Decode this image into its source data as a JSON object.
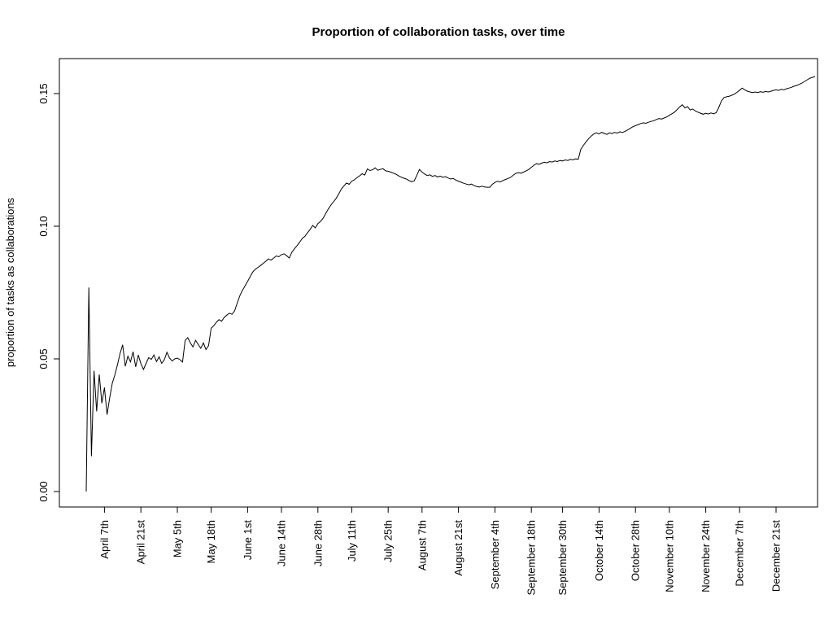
{
  "chart_data": {
    "type": "line",
    "title": "Proportion of collaboration tasks, over time",
    "xlabel": "",
    "ylabel": "proportion of tasks as collaborations",
    "series_name": "proportion of tasks as collaborations",
    "line_color": "#000000",
    "background_color": "#ffffff",
    "grid": false,
    "legend": false,
    "ylim": [
      0.0,
      0.15
    ],
    "y_ticks": [
      "0.00",
      "0.05",
      "0.10",
      "0.15"
    ],
    "y_tick_values": [
      0.0,
      0.05,
      0.1,
      0.15
    ],
    "x_tick_labels": [
      "April 7th",
      "April 21st",
      "May 5th",
      "May 18th",
      "June 1st",
      "June 14th",
      "June 28th",
      "July 11th",
      "July 25th",
      "August 7th",
      "August 21st",
      "September 4th",
      "September 18th",
      "September 30th",
      "October 14th",
      "October 28th",
      "November 10th",
      "November 24th",
      "December 7th",
      "December 21st"
    ],
    "x_tick_days": [
      7,
      21,
      35,
      48,
      62,
      75,
      89,
      102,
      116,
      129,
      143,
      157,
      171,
      183,
      197,
      211,
      224,
      238,
      251,
      265
    ],
    "points_format": "[day_index_from_start, proportion]",
    "points": [
      [
        0,
        0.0
      ],
      [
        1,
        0.0769
      ],
      [
        2,
        0.0133
      ],
      [
        3,
        0.0455
      ],
      [
        4,
        0.0302
      ],
      [
        5,
        0.0441
      ],
      [
        6,
        0.0333
      ],
      [
        7,
        0.0392
      ],
      [
        8,
        0.029
      ],
      [
        9,
        0.0352
      ],
      [
        10,
        0.0408
      ],
      [
        11,
        0.044
      ],
      [
        12,
        0.0478
      ],
      [
        13,
        0.0521
      ],
      [
        14,
        0.0553
      ],
      [
        15,
        0.0472
      ],
      [
        16,
        0.051
      ],
      [
        17,
        0.0489
      ],
      [
        18,
        0.0527
      ],
      [
        19,
        0.047
      ],
      [
        20,
        0.0515
      ],
      [
        21,
        0.0482
      ],
      [
        22,
        0.046
      ],
      [
        23,
        0.0483
      ],
      [
        24,
        0.0505
      ],
      [
        25,
        0.0498
      ],
      [
        26,
        0.0515
      ],
      [
        27,
        0.049
      ],
      [
        28,
        0.0508
      ],
      [
        29,
        0.0483
      ],
      [
        30,
        0.0497
      ],
      [
        31,
        0.0525
      ],
      [
        32,
        0.0503
      ],
      [
        33,
        0.0492
      ],
      [
        34,
        0.05
      ],
      [
        35,
        0.0503
      ],
      [
        36,
        0.0497
      ],
      [
        37,
        0.0488
      ],
      [
        38,
        0.057
      ],
      [
        39,
        0.058
      ],
      [
        40,
        0.056
      ],
      [
        41,
        0.0545
      ],
      [
        42,
        0.057
      ],
      [
        43,
        0.0555
      ],
      [
        44,
        0.054
      ],
      [
        45,
        0.056
      ],
      [
        46,
        0.0535
      ],
      [
        47,
        0.055
      ],
      [
        48,
        0.0616
      ],
      [
        49,
        0.0625
      ],
      [
        50,
        0.0638
      ],
      [
        51,
        0.0648
      ],
      [
        52,
        0.0642
      ],
      [
        53,
        0.0656
      ],
      [
        54,
        0.0665
      ],
      [
        55,
        0.0672
      ],
      [
        56,
        0.0668
      ],
      [
        57,
        0.0681
      ],
      [
        58,
        0.071
      ],
      [
        59,
        0.0738
      ],
      [
        60,
        0.0758
      ],
      [
        61,
        0.0775
      ],
      [
        62,
        0.0792
      ],
      [
        63,
        0.081
      ],
      [
        64,
        0.0828
      ],
      [
        65,
        0.0838
      ],
      [
        66,
        0.0845
      ],
      [
        67,
        0.0852
      ],
      [
        68,
        0.086
      ],
      [
        69,
        0.0868
      ],
      [
        70,
        0.0877
      ],
      [
        71,
        0.0872
      ],
      [
        72,
        0.088
      ],
      [
        73,
        0.0888
      ],
      [
        74,
        0.0885
      ],
      [
        75,
        0.0893
      ],
      [
        76,
        0.0896
      ],
      [
        77,
        0.0889
      ],
      [
        78,
        0.088
      ],
      [
        79,
        0.0902
      ],
      [
        80,
        0.0915
      ],
      [
        81,
        0.0927
      ],
      [
        82,
        0.094
      ],
      [
        83,
        0.0954
      ],
      [
        84,
        0.0962
      ],
      [
        85,
        0.0975
      ],
      [
        86,
        0.0988
      ],
      [
        87,
        0.1003
      ],
      [
        88,
        0.0994
      ],
      [
        89,
        0.101
      ],
      [
        90,
        0.1018
      ],
      [
        91,
        0.103
      ],
      [
        92,
        0.1048
      ],
      [
        93,
        0.1065
      ],
      [
        94,
        0.108
      ],
      [
        95,
        0.1092
      ],
      [
        96,
        0.1105
      ],
      [
        97,
        0.1122
      ],
      [
        98,
        0.114
      ],
      [
        99,
        0.1152
      ],
      [
        100,
        0.1163
      ],
      [
        101,
        0.1158
      ],
      [
        102,
        0.117
      ],
      [
        103,
        0.1175
      ],
      [
        104,
        0.1183
      ],
      [
        105,
        0.119
      ],
      [
        106,
        0.1198
      ],
      [
        107,
        0.1193
      ],
      [
        108,
        0.1216
      ],
      [
        109,
        0.121
      ],
      [
        110,
        0.1213
      ],
      [
        111,
        0.122
      ],
      [
        112,
        0.1211
      ],
      [
        113,
        0.1214
      ],
      [
        114,
        0.1217
      ],
      [
        115,
        0.1209
      ],
      [
        116,
        0.1207
      ],
      [
        117,
        0.1204
      ],
      [
        118,
        0.12
      ],
      [
        119,
        0.1196
      ],
      [
        120,
        0.119
      ],
      [
        121,
        0.1185
      ],
      [
        122,
        0.1181
      ],
      [
        123,
        0.1178
      ],
      [
        124,
        0.1172
      ],
      [
        125,
        0.1168
      ],
      [
        126,
        0.1171
      ],
      [
        127,
        0.1192
      ],
      [
        128,
        0.1214
      ],
      [
        129,
        0.1204
      ],
      [
        130,
        0.1197
      ],
      [
        131,
        0.1191
      ],
      [
        132,
        0.1194
      ],
      [
        133,
        0.1188
      ],
      [
        134,
        0.1191
      ],
      [
        135,
        0.1186
      ],
      [
        136,
        0.1189
      ],
      [
        137,
        0.1184
      ],
      [
        138,
        0.1187
      ],
      [
        139,
        0.1182
      ],
      [
        140,
        0.1178
      ],
      [
        141,
        0.118
      ],
      [
        142,
        0.1174
      ],
      [
        143,
        0.117
      ],
      [
        144,
        0.1166
      ],
      [
        145,
        0.1162
      ],
      [
        146,
        0.1159
      ],
      [
        147,
        0.1156
      ],
      [
        148,
        0.1159
      ],
      [
        149,
        0.1153
      ],
      [
        150,
        0.115
      ],
      [
        151,
        0.1148
      ],
      [
        152,
        0.1151
      ],
      [
        153,
        0.1148
      ],
      [
        154,
        0.1147
      ],
      [
        155,
        0.1147
      ],
      [
        156,
        0.1158
      ],
      [
        157,
        0.1165
      ],
      [
        158,
        0.117
      ],
      [
        159,
        0.1167
      ],
      [
        160,
        0.1172
      ],
      [
        161,
        0.1176
      ],
      [
        162,
        0.118
      ],
      [
        163,
        0.1184
      ],
      [
        164,
        0.1192
      ],
      [
        165,
        0.1199
      ],
      [
        166,
        0.1202
      ],
      [
        167,
        0.12
      ],
      [
        168,
        0.1204
      ],
      [
        169,
        0.1209
      ],
      [
        170,
        0.1214
      ],
      [
        171,
        0.1222
      ],
      [
        172,
        0.123
      ],
      [
        173,
        0.1236
      ],
      [
        174,
        0.1233
      ],
      [
        175,
        0.1238
      ],
      [
        176,
        0.1241
      ],
      [
        177,
        0.1239
      ],
      [
        178,
        0.1244
      ],
      [
        179,
        0.1242
      ],
      [
        180,
        0.1246
      ],
      [
        181,
        0.1244
      ],
      [
        182,
        0.1248
      ],
      [
        183,
        0.1246
      ],
      [
        184,
        0.125
      ],
      [
        185,
        0.1248
      ],
      [
        186,
        0.1252
      ],
      [
        187,
        0.125
      ],
      [
        188,
        0.1254
      ],
      [
        189,
        0.1252
      ],
      [
        190,
        0.129
      ],
      [
        191,
        0.1305
      ],
      [
        192,
        0.1318
      ],
      [
        193,
        0.133
      ],
      [
        194,
        0.134
      ],
      [
        195,
        0.1348
      ],
      [
        196,
        0.1352
      ],
      [
        197,
        0.1348
      ],
      [
        198,
        0.1354
      ],
      [
        199,
        0.135
      ],
      [
        200,
        0.1346
      ],
      [
        201,
        0.1352
      ],
      [
        202,
        0.1349
      ],
      [
        203,
        0.1354
      ],
      [
        204,
        0.1351
      ],
      [
        205,
        0.1356
      ],
      [
        206,
        0.1353
      ],
      [
        207,
        0.1358
      ],
      [
        208,
        0.1363
      ],
      [
        209,
        0.1369
      ],
      [
        210,
        0.1375
      ],
      [
        211,
        0.1379
      ],
      [
        212,
        0.1383
      ],
      [
        213,
        0.1387
      ],
      [
        214,
        0.139
      ],
      [
        215,
        0.1388
      ],
      [
        216,
        0.1392
      ],
      [
        217,
        0.1395
      ],
      [
        218,
        0.1398
      ],
      [
        219,
        0.1402
      ],
      [
        220,
        0.1406
      ],
      [
        221,
        0.1404
      ],
      [
        222,
        0.1408
      ],
      [
        223,
        0.1412
      ],
      [
        224,
        0.1418
      ],
      [
        225,
        0.1424
      ],
      [
        226,
        0.143
      ],
      [
        227,
        0.144
      ],
      [
        228,
        0.145
      ],
      [
        229,
        0.1458
      ],
      [
        230,
        0.1446
      ],
      [
        231,
        0.1451
      ],
      [
        232,
        0.1438
      ],
      [
        233,
        0.1442
      ],
      [
        234,
        0.1434
      ],
      [
        235,
        0.143
      ],
      [
        236,
        0.1426
      ],
      [
        237,
        0.1422
      ],
      [
        238,
        0.1426
      ],
      [
        239,
        0.1423
      ],
      [
        240,
        0.1427
      ],
      [
        241,
        0.1424
      ],
      [
        242,
        0.1428
      ],
      [
        243,
        0.1448
      ],
      [
        244,
        0.1472
      ],
      [
        245,
        0.1485
      ],
      [
        246,
        0.1488
      ],
      [
        247,
        0.149
      ],
      [
        248,
        0.1494
      ],
      [
        249,
        0.1498
      ],
      [
        250,
        0.1505
      ],
      [
        251,
        0.1513
      ],
      [
        252,
        0.1521
      ],
      [
        253,
        0.1514
      ],
      [
        254,
        0.1509
      ],
      [
        255,
        0.1506
      ],
      [
        256,
        0.1504
      ],
      [
        257,
        0.1506
      ],
      [
        258,
        0.1504
      ],
      [
        259,
        0.1507
      ],
      [
        260,
        0.1505
      ],
      [
        261,
        0.1508
      ],
      [
        262,
        0.1506
      ],
      [
        263,
        0.1509
      ],
      [
        264,
        0.1512
      ],
      [
        265,
        0.1514
      ],
      [
        266,
        0.1512
      ],
      [
        267,
        0.1516
      ],
      [
        268,
        0.1514
      ],
      [
        269,
        0.1518
      ],
      [
        270,
        0.1521
      ],
      [
        271,
        0.1524
      ],
      [
        272,
        0.1528
      ],
      [
        273,
        0.1531
      ],
      [
        274,
        0.1535
      ],
      [
        275,
        0.154
      ],
      [
        276,
        0.1546
      ],
      [
        277,
        0.1552
      ],
      [
        278,
        0.1558
      ],
      [
        279,
        0.1561
      ],
      [
        280,
        0.1565
      ]
    ]
  }
}
